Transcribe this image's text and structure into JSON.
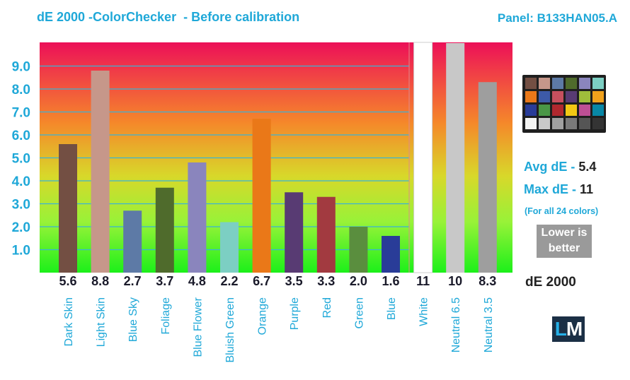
{
  "header": {
    "title": "dE 2000 -ColorChecker  - Before calibration",
    "panel": "Panel: B133HAN05.A"
  },
  "chart_data": {
    "type": "bar",
    "title": "dE 2000 -ColorChecker  - Before calibration",
    "xlabel": "",
    "ylabel": "",
    "ylim": [
      0,
      10
    ],
    "yticks": [
      "1.0",
      "2.0",
      "3.0",
      "4.0",
      "5.0",
      "6.0",
      "7.0",
      "8.0",
      "9.0"
    ],
    "categories": [
      "Dark Skin",
      "Light Skin",
      "Blue Sky",
      "Foliage",
      "Blue Flower",
      "Bluish Green",
      "Orange",
      "Purple",
      "Red",
      "Green",
      "Blue",
      "White",
      "Neutral 6.5",
      "Neutral 3.5"
    ],
    "values": [
      5.6,
      8.8,
      2.7,
      3.7,
      4.8,
      2.2,
      6.7,
      3.5,
      3.3,
      2.0,
      1.6,
      11,
      10,
      8.3
    ],
    "value_labels": [
      "5.6",
      "8.8",
      "2.7",
      "3.7",
      "4.8",
      "2.2",
      "6.7",
      "3.5",
      "3.3",
      "2.0",
      "1.6",
      "11",
      "10",
      "8.3"
    ],
    "bar_colors": [
      "#734f43",
      "#c6978a",
      "#5d7aa6",
      "#4f6b2c",
      "#8a85bd",
      "#7ccfc3",
      "#ea7818",
      "#583b73",
      "#a23a40",
      "#5a8e3e",
      "#293c98",
      "#ffffff",
      "#c8c8c8",
      "#9e9e9e"
    ],
    "grid": true,
    "legend": "none"
  },
  "stats": {
    "avg_label": "Avg dE - ",
    "avg_value": "5.4",
    "max_label": "Max dE - ",
    "max_value": "11",
    "note": "(For all 24 colors)",
    "lower_line1": "Lower is",
    "lower_line2": "better",
    "metric": "dE 2000"
  },
  "checker": {
    "colors": [
      "#734f43",
      "#c6978a",
      "#5d7aa6",
      "#4f6b2c",
      "#8a85bd",
      "#7ccfc3",
      "#ea7818",
      "#3d5aa8",
      "#c7505e",
      "#583b73",
      "#9fbd3b",
      "#f0a21c",
      "#293c98",
      "#4a9646",
      "#b0282e",
      "#f2c814",
      "#bd4f95",
      "#0887a6",
      "#f3f3f2",
      "#c8c8c8",
      "#a0a0a0",
      "#7a7a7a",
      "#555555",
      "#343434"
    ]
  },
  "logo": {
    "left": "L",
    "right": "M"
  }
}
